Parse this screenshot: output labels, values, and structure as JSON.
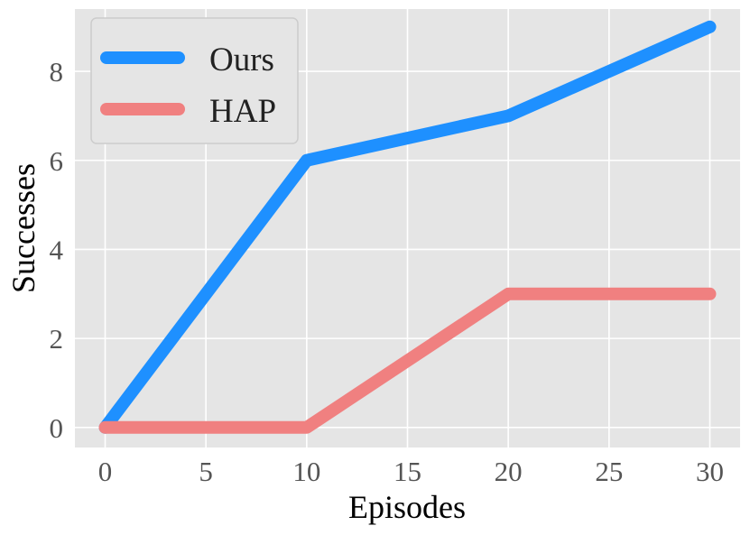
{
  "chart_data": {
    "type": "line",
    "title": "",
    "xlabel": "Episodes",
    "ylabel": "Successes",
    "x": [
      0,
      10,
      20,
      30
    ],
    "xlim": [
      -1.5,
      31.5
    ],
    "ylim": [
      -0.45,
      9.4
    ],
    "xticks": [
      0,
      5,
      10,
      15,
      20,
      25,
      30
    ],
    "yticks": [
      0,
      2,
      4,
      6,
      8
    ],
    "grid": true,
    "legend_position": "top-left",
    "background_color": "#e5e5e5",
    "grid_color": "#ffffff",
    "series": [
      {
        "name": "Ours",
        "color": "#1e90ff",
        "values": [
          0,
          6,
          7,
          9
        ]
      },
      {
        "name": "HAP",
        "color": "#f08080",
        "values": [
          0,
          0,
          3,
          3
        ]
      }
    ]
  }
}
